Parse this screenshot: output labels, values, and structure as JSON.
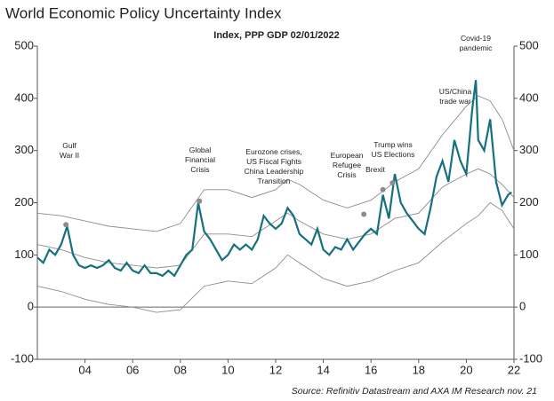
{
  "chart_data": {
    "type": "line",
    "title": "World Economic Policy Uncertainty Index",
    "subtitle": "Index, PPP GDP 02/01/2022",
    "source": "Source: Refinitiv Datastream and AXA IM Research nov. 21",
    "xlim": [
      2002,
      2022
    ],
    "xticks": [
      {
        "value": 2004,
        "label": "04"
      },
      {
        "value": 2006,
        "label": "06"
      },
      {
        "value": 2008,
        "label": "08"
      },
      {
        "value": 2010,
        "label": "10"
      },
      {
        "value": 2012,
        "label": "12"
      },
      {
        "value": 2014,
        "label": "14"
      },
      {
        "value": 2016,
        "label": "16"
      },
      {
        "value": 2018,
        "label": "18"
      },
      {
        "value": 2020,
        "label": "20"
      },
      {
        "value": 2022,
        "label": "22"
      }
    ],
    "ylim": [
      -100,
      500
    ],
    "yticks": [
      -100,
      0,
      100,
      200,
      300,
      400,
      500
    ],
    "y2lim": [
      -100,
      500
    ],
    "y2ticks": [
      -100,
      0,
      100,
      200,
      300,
      400,
      500
    ],
    "series": [
      {
        "color": "#8c8c8c",
        "x": [
          2002,
          2003,
          2004,
          2005,
          2006,
          2007,
          2008,
          2009,
          2010,
          2011,
          2012,
          2012.5,
          2013,
          2014,
          2015,
          2016,
          2017,
          2018,
          2019,
          2020,
          2020.5,
          2021,
          2021.5,
          2022
        ],
        "values": [
          180,
          175,
          165,
          155,
          150,
          145,
          160,
          225,
          225,
          210,
          225,
          245,
          235,
          205,
          190,
          205,
          240,
          265,
          330,
          385,
          405,
          395,
          360,
          300
        ]
      },
      {
        "color": "#8c8c8c",
        "x": [
          2002,
          2003,
          2004,
          2005,
          2006,
          2007,
          2008,
          2009,
          2010,
          2011,
          2012,
          2012.5,
          2013,
          2014,
          2015,
          2016,
          2017,
          2018,
          2019,
          2020,
          2020.5,
          2021,
          2021.5,
          2022
        ],
        "values": [
          120,
          110,
          95,
          85,
          80,
          75,
          80,
          140,
          140,
          135,
          165,
          180,
          165,
          140,
          130,
          140,
          170,
          180,
          230,
          255,
          265,
          255,
          235,
          210
        ]
      },
      {
        "color": "#8c8c8c",
        "x": [
          2002,
          2003,
          2004,
          2005,
          2006,
          2007,
          2008,
          2009,
          2010,
          2011,
          2012,
          2012.5,
          2013,
          2014,
          2015,
          2016,
          2017,
          2018,
          2019,
          2020,
          2020.5,
          2021,
          2021.5,
          2022
        ],
        "values": [
          40,
          30,
          15,
          5,
          0,
          -10,
          -5,
          40,
          50,
          45,
          75,
          100,
          85,
          55,
          40,
          50,
          70,
          85,
          125,
          160,
          175,
          200,
          185,
          150
        ]
      },
      {
        "color": "#17707f",
        "x": [
          2002,
          2002.25,
          2002.5,
          2002.75,
          2003,
          2003.25,
          2003.5,
          2003.75,
          2004,
          2004.25,
          2004.5,
          2004.75,
          2005,
          2005.25,
          2005.5,
          2005.75,
          2006,
          2006.25,
          2006.5,
          2006.75,
          2007,
          2007.25,
          2007.5,
          2007.75,
          2008,
          2008.25,
          2008.5,
          2008.75,
          2009,
          2009.25,
          2009.5,
          2009.75,
          2010,
          2010.25,
          2010.5,
          2010.75,
          2011,
          2011.25,
          2011.5,
          2011.75,
          2012,
          2012.25,
          2012.5,
          2012.75,
          2013,
          2013.25,
          2013.5,
          2013.75,
          2014,
          2014.25,
          2014.5,
          2014.75,
          2015,
          2015.25,
          2015.5,
          2015.75,
          2016,
          2016.25,
          2016.5,
          2016.75,
          2017,
          2017.25,
          2017.5,
          2017.75,
          2018,
          2018.25,
          2018.5,
          2018.75,
          2019,
          2019.25,
          2019.5,
          2019.75,
          2020,
          2020.25,
          2020.4,
          2020.5,
          2020.75,
          2021,
          2021.25,
          2021.5,
          2021.75,
          2021.9
        ],
        "values": [
          95,
          85,
          110,
          100,
          120,
          155,
          100,
          80,
          75,
          80,
          75,
          80,
          90,
          75,
          70,
          85,
          70,
          65,
          80,
          65,
          65,
          60,
          70,
          60,
          80,
          100,
          110,
          200,
          145,
          130,
          110,
          90,
          100,
          120,
          110,
          120,
          110,
          130,
          175,
          160,
          150,
          160,
          190,
          175,
          140,
          130,
          120,
          150,
          110,
          100,
          115,
          110,
          130,
          110,
          125,
          140,
          150,
          140,
          215,
          170,
          255,
          200,
          180,
          165,
          150,
          140,
          190,
          250,
          280,
          240,
          320,
          280,
          255,
          380,
          435,
          320,
          300,
          360,
          240,
          195,
          215,
          220
        ]
      }
    ],
    "annotations": [
      {
        "lines": [
          "Gulf",
          "War II"
        ],
        "x": 2003.2,
        "y": 158
      },
      {
        "lines": [
          "Global",
          "Financial",
          "Crisis"
        ],
        "x": 2008.8,
        "y": 203
      },
      {
        "lines": [
          "Eurozone crises,",
          "US Fiscal Fights",
          "China Leadership",
          "Transition"
        ]
      },
      {
        "lines": [
          "European",
          "Refugee",
          "Crisis"
        ],
        "x": 2015.7,
        "y": 178
      },
      {
        "lines": [
          "Brexit"
        ],
        "x": 2016.5,
        "y": 225
      },
      {
        "lines": [
          "Trump wins",
          "US Elections"
        ],
        "x": 2016.9,
        "y": 238
      },
      {
        "lines": [
          "US/China",
          "trade war"
        ]
      },
      {
        "lines": [
          "Covid-19",
          "pandemic"
        ]
      }
    ]
  }
}
